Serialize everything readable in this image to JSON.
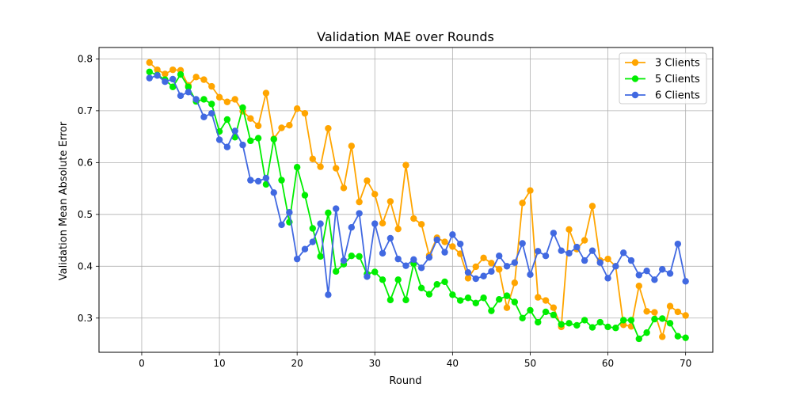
{
  "chart_data": {
    "type": "line",
    "title": "Validation MAE over Rounds",
    "xlabel": "Round",
    "ylabel": "Validation Mean Absolute Error",
    "xlim": [
      -5.5,
      73.5
    ],
    "ylim": [
      0.234,
      0.822
    ],
    "xticks": [
      0,
      10,
      20,
      30,
      40,
      50,
      60,
      70
    ],
    "yticks": [
      0.3,
      0.4,
      0.5,
      0.6,
      0.7,
      0.8
    ],
    "grid": true,
    "legend_position": "top-right",
    "x": [
      1,
      2,
      3,
      4,
      5,
      6,
      7,
      8,
      9,
      10,
      11,
      12,
      13,
      14,
      15,
      16,
      17,
      18,
      19,
      20,
      21,
      22,
      23,
      24,
      25,
      26,
      27,
      28,
      29,
      30,
      31,
      32,
      33,
      34,
      35,
      36,
      37,
      38,
      39,
      40,
      41,
      42,
      43,
      44,
      45,
      46,
      47,
      48,
      49,
      50,
      51,
      52,
      53,
      54,
      55,
      56,
      57,
      58,
      59,
      60,
      61,
      62,
      63,
      64,
      65,
      66,
      67,
      68,
      69,
      70
    ],
    "series": [
      {
        "name": "3 Clients",
        "color": "#ffa500",
        "values": [
          0.793,
          0.779,
          0.771,
          0.779,
          0.778,
          0.749,
          0.765,
          0.76,
          0.747,
          0.726,
          0.717,
          0.722,
          0.699,
          0.685,
          0.671,
          0.734,
          0.646,
          0.667,
          0.672,
          0.704,
          0.695,
          0.607,
          0.592,
          0.666,
          0.589,
          0.551,
          0.632,
          0.524,
          0.565,
          0.539,
          0.483,
          0.525,
          0.472,
          0.595,
          0.492,
          0.481,
          0.421,
          0.455,
          0.447,
          0.438,
          0.424,
          0.377,
          0.399,
          0.416,
          0.406,
          0.394,
          0.32,
          0.368,
          0.522,
          0.546,
          0.34,
          0.334,
          0.32,
          0.283,
          0.471,
          0.433,
          0.45,
          0.516,
          0.411,
          0.414,
          0.4,
          0.287,
          0.284,
          0.362,
          0.313,
          0.311,
          0.264,
          0.323,
          0.312,
          0.305
        ]
      },
      {
        "name": "5 Clients",
        "color": "#00ee00",
        "values": [
          0.775,
          0.769,
          0.76,
          0.746,
          0.77,
          0.746,
          0.718,
          0.722,
          0.713,
          0.66,
          0.683,
          0.649,
          0.706,
          0.642,
          0.647,
          0.558,
          0.645,
          0.566,
          0.485,
          0.591,
          0.537,
          0.473,
          0.419,
          0.503,
          0.39,
          0.404,
          0.42,
          0.419,
          0.385,
          0.389,
          0.374,
          0.335,
          0.374,
          0.335,
          0.405,
          0.358,
          0.346,
          0.365,
          0.37,
          0.345,
          0.334,
          0.339,
          0.329,
          0.339,
          0.314,
          0.336,
          0.343,
          0.331,
          0.3,
          0.315,
          0.292,
          0.312,
          0.306,
          0.288,
          0.29,
          0.286,
          0.296,
          0.282,
          0.292,
          0.283,
          0.281,
          0.296,
          0.296,
          0.26,
          0.272,
          0.298,
          0.299,
          0.29,
          0.265,
          0.262
        ]
      },
      {
        "name": "6 Clients",
        "color": "#4169e1",
        "values": [
          0.763,
          0.768,
          0.756,
          0.761,
          0.729,
          0.736,
          0.722,
          0.688,
          0.695,
          0.644,
          0.63,
          0.661,
          0.634,
          0.566,
          0.564,
          0.57,
          0.542,
          0.48,
          0.504,
          0.414,
          0.433,
          0.447,
          0.482,
          0.345,
          0.511,
          0.411,
          0.475,
          0.502,
          0.38,
          0.482,
          0.425,
          0.454,
          0.414,
          0.401,
          0.413,
          0.397,
          0.417,
          0.451,
          0.427,
          0.461,
          0.443,
          0.388,
          0.376,
          0.381,
          0.39,
          0.42,
          0.4,
          0.407,
          0.444,
          0.384,
          0.429,
          0.42,
          0.464,
          0.43,
          0.425,
          0.437,
          0.411,
          0.43,
          0.407,
          0.377,
          0.4,
          0.426,
          0.411,
          0.383,
          0.391,
          0.374,
          0.394,
          0.386,
          0.443,
          0.371
        ]
      }
    ]
  }
}
